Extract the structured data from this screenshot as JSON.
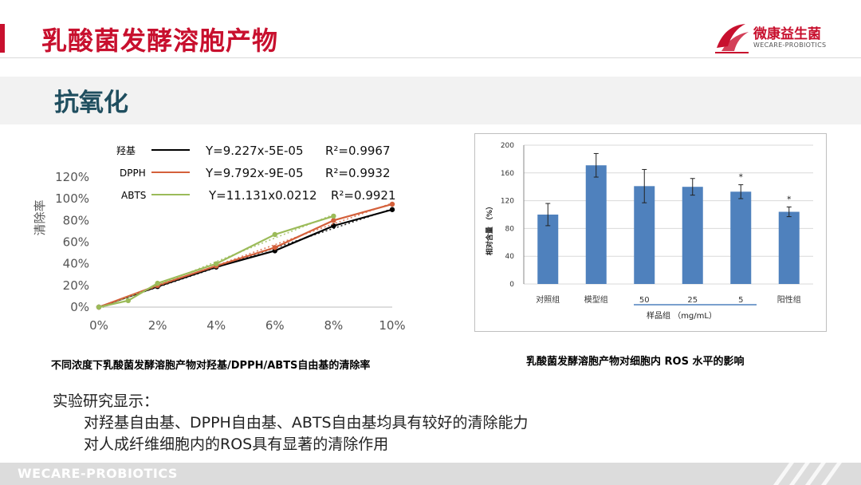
{
  "header": {
    "title": "乳酸菌发酵溶胞产物",
    "logo_cn": "微康益生菌",
    "logo_en": "WECARE-PROBIOTICS",
    "accent_color": "#c8102e"
  },
  "section": {
    "title": "抗氧化"
  },
  "left_chart": {
    "caption": "不同浓度下乳酸菌发酵溶胞产物对羟基/DPPH/ABTS自由基的清除率"
  },
  "right_chart": {
    "caption": "乳酸菌发酵溶胞产物对细胞内 ROS 水平的影响"
  },
  "findings": {
    "title": "实验研究显示：",
    "items": [
      "对羟基自由基、DPPH自由基、ABTS自由基均具有较好的清除能力",
      "对人成纤维细胞内的ROS具有显著的清除作用"
    ]
  },
  "footer": {
    "text": "WECARE-PROBIOTICS"
  },
  "chart_data": [
    {
      "type": "line",
      "title": "",
      "xlabel": "",
      "ylabel": "清除率",
      "x": [
        0,
        1,
        2,
        4,
        6,
        8,
        10
      ],
      "xticks": [
        "0%",
        "2%",
        "4%",
        "6%",
        "8%",
        "10%"
      ],
      "yticks": [
        "0%",
        "20%",
        "40%",
        "60%",
        "80%",
        "100%",
        "120%"
      ],
      "xlim": [
        0,
        10
      ],
      "ylim": [
        0,
        120
      ],
      "grid": false,
      "legend_position": "top-left",
      "series": [
        {
          "name": "羟基",
          "color": "#000000",
          "x": [
            0,
            2,
            4,
            6,
            8,
            10
          ],
          "values": [
            0,
            19,
            37,
            52,
            75,
            90
          ],
          "equation": "Y=9.227x-5E-05",
          "r2": "R²=0.9967"
        },
        {
          "name": "DPPH",
          "color": "#d4603b",
          "x": [
            0,
            2,
            4,
            6,
            8,
            10
          ],
          "values": [
            0,
            20,
            38,
            55,
            80,
            95
          ],
          "equation": "Y=9.792x-9E-05",
          "r2": "R²=0.9932"
        },
        {
          "name": "ABTS",
          "color": "#9bbb59",
          "x": [
            0,
            1,
            2,
            4,
            6,
            8
          ],
          "values": [
            0,
            6,
            22,
            40,
            67,
            84
          ],
          "equation": "Y=11.131x0.0212",
          "r2": "R²=0.9921"
        }
      ]
    },
    {
      "type": "bar",
      "title": "",
      "xlabel": "样品组 （mg/mL）",
      "ylabel": "相对含量 （%）",
      "categories": [
        "对照组",
        "模型组",
        "50",
        "25",
        "5",
        "阳性组"
      ],
      "values": [
        100,
        171,
        141,
        140,
        133,
        104
      ],
      "errors": [
        16,
        17,
        24,
        12,
        10,
        7
      ],
      "significance": [
        "",
        "",
        "",
        "",
        "*",
        "*"
      ],
      "ylim": [
        0,
        200
      ],
      "yticks": [
        "0",
        "40",
        "80",
        "120",
        "160",
        "200"
      ],
      "bar_color": "#4f81bd",
      "grid": true
    }
  ]
}
